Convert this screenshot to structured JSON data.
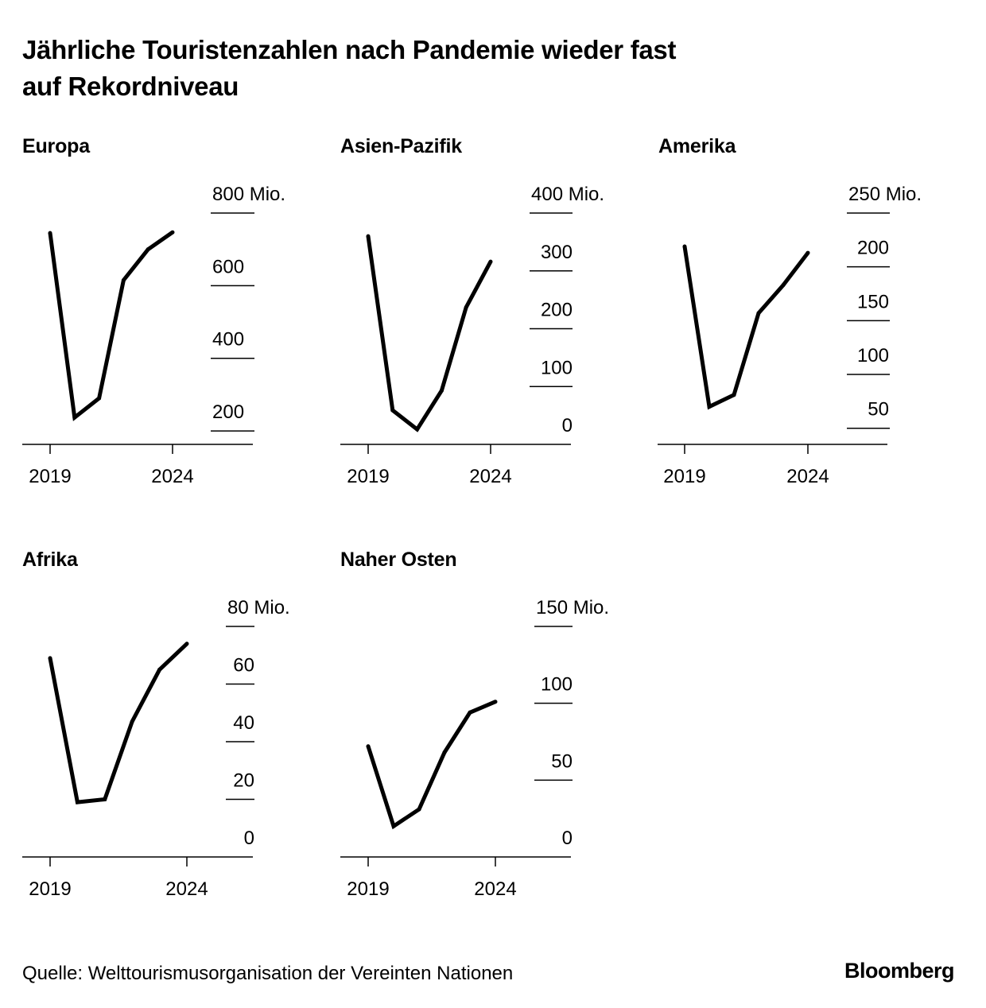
{
  "title_line1": "Jährliche Touristenzahlen nach Pandemie wieder fast",
  "title_line2": "auf Rekordniveau",
  "source": "Quelle: Welttourismusorganisation der Vereinten Nationen",
  "logo": "Bloomberg",
  "chart_data": [
    {
      "type": "line",
      "title": "Europa",
      "x": [
        2019,
        2020,
        2021,
        2022,
        2023,
        2024
      ],
      "x_tick_labels": [
        "2019",
        "2024"
      ],
      "values": [
        745,
        237,
        290,
        615,
        700,
        747
      ],
      "ylim": [
        163,
        800
      ],
      "y_ticks": [
        800,
        600,
        400,
        200
      ],
      "y_tick_labels": [
        "800 Mio.",
        "600",
        "400",
        "200"
      ],
      "color": "#000000"
    },
    {
      "type": "line",
      "title": "Asien-Pazifik",
      "x": [
        2019,
        2020,
        2021,
        2022,
        2023,
        2024
      ],
      "x_tick_labels": [
        "2019",
        "2024"
      ],
      "values": [
        360,
        59,
        26,
        93,
        237,
        316
      ],
      "ylim": [
        0,
        400
      ],
      "y_ticks": [
        400,
        300,
        200,
        100,
        0
      ],
      "y_tick_labels": [
        "400 Mio.",
        "300",
        "200",
        "100",
        "0"
      ],
      "color": "#000000"
    },
    {
      "type": "line",
      "title": "Amerika",
      "x": [
        2019,
        2020,
        2021,
        2022,
        2023,
        2024
      ],
      "x_tick_labels": [
        "2019",
        "2024"
      ],
      "values": [
        219,
        70,
        81,
        157,
        183,
        213
      ],
      "ylim": [
        35,
        250
      ],
      "y_ticks": [
        250,
        200,
        150,
        100,
        50
      ],
      "y_tick_labels": [
        "250 Mio.",
        "200",
        "150",
        "100",
        "50"
      ],
      "color": "#000000"
    },
    {
      "type": "line",
      "title": "Afrika",
      "x": [
        2019,
        2020,
        2021,
        2022,
        2023,
        2024
      ],
      "x_tick_labels": [
        "2019",
        "2024"
      ],
      "values": [
        69,
        19,
        20,
        47,
        65,
        74
      ],
      "ylim": [
        0,
        80
      ],
      "y_ticks": [
        80,
        60,
        40,
        20,
        0
      ],
      "y_tick_labels": [
        "80 Mio.",
        "60",
        "40",
        "20",
        "0"
      ],
      "color": "#000000"
    },
    {
      "type": "line",
      "title": "Naher Osten",
      "x": [
        2019,
        2020,
        2021,
        2022,
        2023,
        2024
      ],
      "x_tick_labels": [
        "2019",
        "2024"
      ],
      "values": [
        72,
        20,
        31,
        68,
        94,
        101
      ],
      "ylim": [
        0,
        150
      ],
      "y_ticks": [
        150,
        100,
        50,
        0
      ],
      "y_tick_labels": [
        "150 Mio.",
        "100",
        "50",
        "0"
      ],
      "color": "#000000"
    }
  ]
}
